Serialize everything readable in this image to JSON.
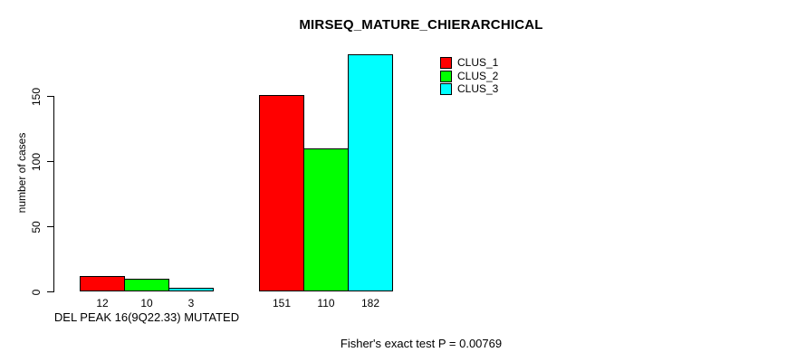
{
  "chart_data": {
    "type": "bar",
    "title": "MIRSEQ_MATURE_CHIERARCHICAL",
    "ylabel": "number of cases",
    "xlabel": "",
    "yticks": [
      0,
      50,
      100,
      150
    ],
    "ylim": [
      0,
      185
    ],
    "grid": false,
    "legend_position": "topright",
    "bar_value_labels": true,
    "series": [
      {
        "name": "CLUS_1",
        "color": "#ff0000"
      },
      {
        "name": "CLUS_2",
        "color": "#00ff00"
      },
      {
        "name": "CLUS_3",
        "color": "#00ffff"
      }
    ],
    "groups": [
      {
        "label": "DEL PEAK 16(9Q22.33) MUTATED",
        "values": [
          12,
          10,
          3
        ]
      },
      {
        "label": "",
        "values": [
          151,
          110,
          182
        ]
      }
    ],
    "annotation": "Fisher's exact test P = 0.00769"
  }
}
